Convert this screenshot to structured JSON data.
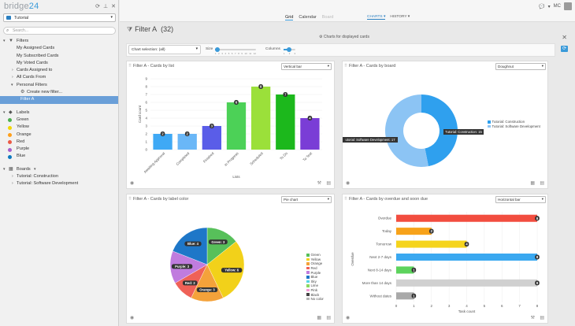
{
  "app": {
    "logo_text": "bridge",
    "logo_num": "24",
    "initials": "MC"
  },
  "sidebar": {
    "board_select": "Tutorial",
    "search_placeholder": "Search...",
    "filters_header": "Filters",
    "filter_items": [
      "My Assigned Cards",
      "My Subscribed Cards",
      "My Voted Cards",
      "Cards Assigned to",
      "All Cards From",
      "Personal Filters"
    ],
    "create_filter": "Create new filter...",
    "selected_filter": "Filter A",
    "labels_header": "Labels",
    "labels": [
      {
        "name": "Green",
        "color": "#4caf50"
      },
      {
        "name": "Yellow",
        "color": "#f2d600"
      },
      {
        "name": "Orange",
        "color": "#ff9f1a"
      },
      {
        "name": "Red",
        "color": "#eb5a46"
      },
      {
        "name": "Purple",
        "color": "#a65fcc"
      },
      {
        "name": "Blue",
        "color": "#0b79bf"
      }
    ],
    "boards_header": "Boards",
    "boards": [
      "Tutorial: Construction",
      "Tutorial: Software Development"
    ]
  },
  "topbar": {
    "tabs": [
      "Grid",
      "Calendar",
      "Board"
    ],
    "charts_tab": "CHARTS",
    "history_tab": "HISTORY"
  },
  "main": {
    "title": "Filter A",
    "count": "(32)",
    "subtitle": "Charts for displayed cards",
    "chart_selection": "Chart selection: (all)",
    "size_label": "Size",
    "size_ticks": [
      "1",
      "2",
      "3",
      "4",
      "5",
      "6",
      "7",
      "8",
      "9",
      "10",
      "11",
      "12"
    ],
    "columns_label": "Columns",
    "columns_ticks": [
      "1",
      "2",
      "3"
    ]
  },
  "chart_data": [
    {
      "type": "bar",
      "title": "Filter A - Cards by list",
      "selector": "Vertical bar",
      "categories": [
        "Awaiting Approval",
        "Completed",
        "Finished",
        "In Progress",
        "Scheduled",
        "To Do",
        "To Test"
      ],
      "values": [
        2,
        2,
        3,
        6,
        8,
        7,
        4
      ],
      "colors": [
        "#3fa9f5",
        "#6ab7f7",
        "#5a5de8",
        "#4cd157",
        "#9be03a",
        "#1cb81c",
        "#7a3dd6"
      ],
      "xlabel": "Lists",
      "ylabel": "Card count",
      "ylim": [
        0,
        9
      ],
      "yticks": [
        0,
        1,
        2,
        3,
        4,
        5,
        6,
        7,
        8,
        9
      ]
    },
    {
      "type": "pie",
      "subtype": "doughnut",
      "title": "Filter A - Cards by board",
      "selector": "Doughnut",
      "categories": [
        "Tutorial: Construction",
        "Tutorial: Software Development"
      ],
      "values": [
        15,
        17
      ],
      "colors": [
        "#2fa0ee",
        "#8cc4f4"
      ],
      "labels": [
        "Tutorial: Construction: 15",
        "utorial: Software Development: 17"
      ]
    },
    {
      "type": "pie",
      "title": "Filter A - Cards by label color",
      "selector": "Pie chart",
      "categories": [
        "Green",
        "Yellow",
        "Orange",
        "Red",
        "Purple",
        "Blue",
        "Sky",
        "Lime",
        "Pink",
        "Black",
        "No color"
      ],
      "values": [
        3,
        6,
        3,
        2,
        3,
        4,
        0,
        0,
        0,
        0,
        0
      ],
      "colors": [
        "#57c05a",
        "#f2d11a",
        "#f4a23a",
        "#ef6157",
        "#c07cde",
        "#1e77c8",
        "#5ad6e6",
        "#8cd860",
        "#f39ad6",
        "#444444",
        "#b5b5b5"
      ],
      "labels": [
        "Green: 3",
        "Yellow: 6",
        "Orange: 3",
        "Red: 2",
        "Purple: 3",
        "Blue: 4"
      ]
    },
    {
      "type": "bar",
      "orientation": "horizontal",
      "title": "Filter A - Cards by overdue and soon due",
      "selector": "Horizontal bar",
      "categories": [
        "Overdue",
        "Today",
        "Tomorrow",
        "Next 2-7 days",
        "Next 8-14 days",
        "More than 14 days",
        "Without dates"
      ],
      "values": [
        8,
        2,
        4,
        8,
        1,
        8,
        1
      ],
      "colors": [
        "#f24d3f",
        "#f7a21a",
        "#f5d41c",
        "#3aa8f0",
        "#5dd35d",
        "#d0d0d0",
        "#a9a9a9"
      ],
      "xlabel": "Task count",
      "ylabel": "Overdue",
      "xlim": [
        0,
        8
      ],
      "xticks": [
        0,
        1,
        2,
        3,
        4,
        5,
        6,
        7,
        8
      ]
    }
  ]
}
